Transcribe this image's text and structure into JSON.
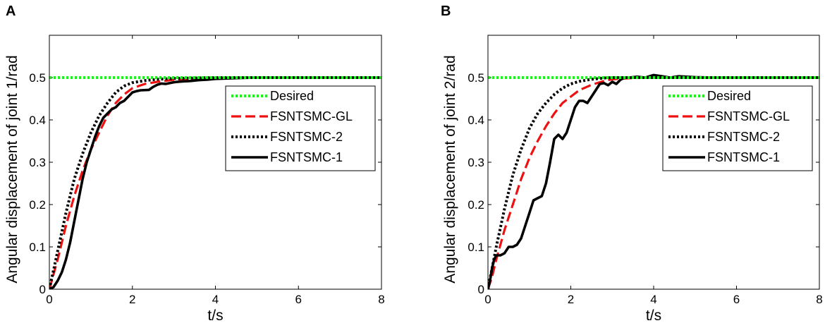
{
  "chart_data": [
    {
      "type": "line",
      "panel": "A",
      "xlabel": "t/s",
      "ylabel": "Angular displacement of joint 1/rad",
      "xlim": [
        0,
        8
      ],
      "ylim": [
        0,
        0.6
      ],
      "xticks": [
        "0",
        "2",
        "4",
        "6",
        "8"
      ],
      "yticks": [
        "0",
        "0.1",
        "0.2",
        "0.3",
        "0.4",
        "0.5"
      ],
      "legend_position": "right",
      "series": [
        {
          "name": "Desired",
          "color": "#22ee22",
          "style": "dotted",
          "x": [
            0,
            8
          ],
          "y": [
            0.5,
            0.5
          ]
        },
        {
          "name": "FSNTSMC-GL",
          "color": "#ee1111",
          "style": "dashed",
          "x": [
            0,
            0.2,
            0.4,
            0.6,
            0.8,
            1.0,
            1.2,
            1.4,
            1.6,
            1.8,
            2.0,
            2.3,
            2.6,
            3.0,
            3.5,
            4.0,
            5.0,
            6.0,
            8.0
          ],
          "y": [
            0,
            0.07,
            0.15,
            0.22,
            0.28,
            0.33,
            0.37,
            0.41,
            0.44,
            0.46,
            0.475,
            0.485,
            0.49,
            0.495,
            0.498,
            0.499,
            0.5,
            0.5,
            0.5
          ]
        },
        {
          "name": "FSNTSMC-2",
          "color": "#000000",
          "style": "dotted",
          "x": [
            0,
            0.2,
            0.4,
            0.6,
            0.8,
            1.0,
            1.2,
            1.4,
            1.6,
            1.8,
            2.0,
            2.3,
            2.6,
            3.0,
            3.5,
            4.0,
            5.0,
            8.0
          ],
          "y": [
            0,
            0.09,
            0.18,
            0.26,
            0.32,
            0.37,
            0.41,
            0.44,
            0.465,
            0.48,
            0.488,
            0.493,
            0.496,
            0.498,
            0.499,
            0.5,
            0.5,
            0.5
          ]
        },
        {
          "name": "FSNTSMC-1",
          "color": "#000000",
          "style": "solid",
          "x": [
            0,
            0.1,
            0.2,
            0.3,
            0.4,
            0.5,
            0.6,
            0.7,
            0.8,
            0.9,
            1.0,
            1.1,
            1.2,
            1.3,
            1.4,
            1.5,
            1.6,
            1.7,
            1.8,
            1.9,
            2.0,
            2.1,
            2.2,
            2.4,
            2.5,
            2.6,
            2.7,
            2.8,
            3.0,
            3.2,
            3.4,
            3.6,
            3.8,
            4.0,
            4.3,
            4.6,
            5.0,
            6.0,
            7.0,
            8.0
          ],
          "y": [
            0,
            0.005,
            0.02,
            0.04,
            0.07,
            0.11,
            0.16,
            0.21,
            0.26,
            0.3,
            0.33,
            0.36,
            0.385,
            0.405,
            0.415,
            0.425,
            0.43,
            0.44,
            0.445,
            0.455,
            0.465,
            0.468,
            0.47,
            0.471,
            0.478,
            0.483,
            0.486,
            0.485,
            0.489,
            0.491,
            0.492,
            0.494,
            0.495,
            0.497,
            0.498,
            0.499,
            0.5,
            0.5,
            0.5,
            0.5
          ]
        }
      ]
    },
    {
      "type": "line",
      "panel": "B",
      "xlabel": "t/s",
      "ylabel": "Angular displacement of joint 2/rad",
      "xlim": [
        0,
        8
      ],
      "ylim": [
        0,
        0.6
      ],
      "xticks": [
        "0",
        "2",
        "4",
        "6",
        "8"
      ],
      "yticks": [
        "0",
        "0.1",
        "0.2",
        "0.3",
        "0.4",
        "0.5"
      ],
      "legend_position": "right",
      "series": [
        {
          "name": "Desired",
          "color": "#22ee22",
          "style": "dotted",
          "x": [
            0,
            8
          ],
          "y": [
            0.5,
            0.5
          ]
        },
        {
          "name": "FSNTSMC-GL",
          "color": "#ee1111",
          "style": "dashed",
          "x": [
            0,
            0.1,
            0.2,
            0.4,
            0.6,
            0.8,
            1.0,
            1.2,
            1.4,
            1.6,
            1.8,
            2.0,
            2.2,
            2.5,
            2.8,
            3.0,
            3.5,
            4.0,
            5.0,
            8.0
          ],
          "y": [
            0,
            0.03,
            0.07,
            0.14,
            0.2,
            0.26,
            0.31,
            0.35,
            0.385,
            0.415,
            0.44,
            0.455,
            0.47,
            0.483,
            0.492,
            0.496,
            0.499,
            0.5,
            0.5,
            0.5
          ]
        },
        {
          "name": "FSNTSMC-2",
          "color": "#000000",
          "style": "dotted",
          "x": [
            0,
            0.1,
            0.2,
            0.4,
            0.6,
            0.8,
            1.0,
            1.2,
            1.4,
            1.6,
            1.8,
            2.0,
            2.2,
            2.5,
            2.8,
            3.0,
            3.5,
            4.0,
            5.0,
            8.0
          ],
          "y": [
            0,
            0.05,
            0.1,
            0.19,
            0.27,
            0.33,
            0.38,
            0.415,
            0.44,
            0.46,
            0.475,
            0.485,
            0.491,
            0.496,
            0.499,
            0.5,
            0.5,
            0.5,
            0.5,
            0.5
          ]
        },
        {
          "name": "FSNTSMC-1",
          "color": "#000000",
          "style": "solid",
          "x": [
            0,
            0.05,
            0.1,
            0.15,
            0.2,
            0.3,
            0.4,
            0.5,
            0.6,
            0.7,
            0.8,
            0.9,
            1.0,
            1.1,
            1.2,
            1.3,
            1.4,
            1.5,
            1.6,
            1.7,
            1.8,
            1.9,
            2.0,
            2.1,
            2.2,
            2.3,
            2.4,
            2.5,
            2.6,
            2.7,
            2.8,
            2.9,
            3.0,
            3.1,
            3.2,
            3.3,
            3.4,
            3.6,
            3.8,
            4.0,
            4.2,
            4.4,
            4.6,
            4.8,
            5.0,
            5.5,
            6.0,
            7.0,
            8.0
          ],
          "y": [
            0,
            0.02,
            0.05,
            0.07,
            0.08,
            0.08,
            0.085,
            0.1,
            0.1,
            0.105,
            0.12,
            0.15,
            0.18,
            0.21,
            0.215,
            0.22,
            0.25,
            0.3,
            0.355,
            0.365,
            0.355,
            0.37,
            0.4,
            0.43,
            0.445,
            0.445,
            0.44,
            0.455,
            0.47,
            0.485,
            0.487,
            0.482,
            0.49,
            0.485,
            0.495,
            0.5,
            0.5,
            0.502,
            0.5,
            0.506,
            0.503,
            0.5,
            0.503,
            0.502,
            0.501,
            0.5,
            0.5,
            0.5,
            0.5
          ]
        }
      ]
    }
  ]
}
